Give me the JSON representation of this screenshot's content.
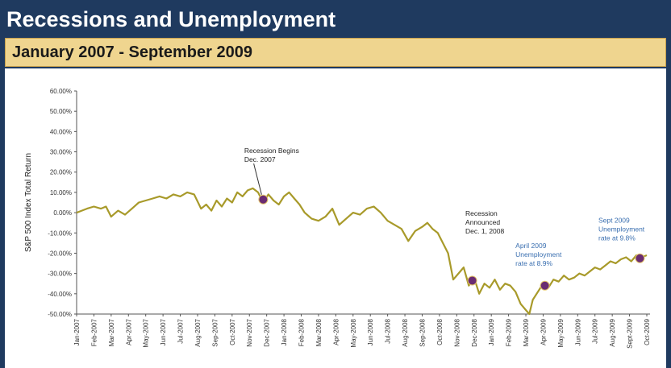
{
  "header": {
    "title": "Recessions and Unemployment",
    "subtitle": "January 2007 - September 2009"
  },
  "colors": {
    "header_bg": "#1f3a5f",
    "subtitle_bg": "#efd58f",
    "line": "#a89a2a",
    "marker": "#6a2c72",
    "ann_black": "#222222",
    "ann_blue": "#3a6fb0"
  },
  "chart_data": {
    "type": "line",
    "ylabel": "S&P 500 Index Total Return",
    "ylim": [
      -50,
      60
    ],
    "yticks": [
      60,
      50,
      40,
      30,
      20,
      10,
      0,
      -10,
      -20,
      -30,
      -40,
      -50
    ],
    "ytick_labels": [
      "60.00%",
      "50.00%",
      "40.00%",
      "30.00%",
      "20.00%",
      "10.00%",
      "0.00%",
      "-10.00%",
      "-20.00%",
      "-30.00%",
      "-40.00%",
      "-50.00%"
    ],
    "x_labels": [
      "Jan-2007",
      "Feb-2007",
      "Mar-2007",
      "Apr-2007",
      "May-2007",
      "Jun-2007",
      "Jul-2007",
      "Aug-2007",
      "Sep-2007",
      "Oct-2007",
      "Nov-2007",
      "Dec-2007",
      "Jan-2008",
      "Feb-2008",
      "Mar-2008",
      "Apr-2008",
      "May-2008",
      "Jun-2008",
      "Jul-2008",
      "Aug-2008",
      "Sep-2008",
      "Oct-2008",
      "Nov-2008",
      "Dec-2008",
      "Jan-2009",
      "Feb-2009",
      "Mar-2009",
      "Apr-2009",
      "May-2009",
      "Jun-2009",
      "Jul-2009",
      "Aug-2009",
      "Sept-2009",
      "Oct-2009"
    ],
    "series": [
      {
        "x": [
          0,
          0.3,
          0.6,
          1.0,
          1.4,
          1.7,
          2.0,
          2.4,
          2.8,
          3.2,
          3.6,
          4.0,
          4.4,
          4.8,
          5.2,
          5.6,
          6.0,
          6.4,
          6.8,
          7.2,
          7.5,
          7.8,
          8.1,
          8.4,
          8.7,
          9.0,
          9.3,
          9.6,
          9.9,
          10.2,
          10.5,
          10.8,
          11.1,
          11.4,
          11.7,
          12.0,
          12.3,
          12.6,
          12.9,
          13.2,
          13.6,
          14.0,
          14.4,
          14.8,
          15.2,
          15.6,
          16.0,
          16.4,
          16.8,
          17.2,
          17.6,
          18.0,
          18.4,
          18.8,
          19.2,
          19.6,
          20.0,
          20.3,
          20.6,
          20.9,
          21.2,
          21.5,
          21.8,
          22.1,
          22.4,
          22.7,
          23.0,
          23.3,
          23.6,
          23.9,
          24.2,
          24.5,
          24.8,
          25.1,
          25.4,
          25.7,
          26.0,
          26.2,
          26.4,
          26.7,
          27.0,
          27.3,
          27.6,
          27.9,
          28.2,
          28.5,
          28.8,
          29.1,
          29.4,
          29.7,
          30.0,
          30.3,
          30.6,
          30.9,
          31.2,
          31.5,
          31.8,
          32.1,
          32.4,
          32.7,
          33.0
        ],
        "y": [
          0,
          1,
          2,
          3,
          2,
          3,
          -2,
          1,
          -1,
          2,
          5,
          6,
          7,
          8,
          7,
          9,
          8,
          10,
          9,
          2,
          4,
          1,
          6,
          3,
          7,
          5,
          10,
          8,
          11,
          12,
          10,
          5,
          9,
          6,
          4,
          8,
          10,
          7,
          4,
          0,
          -3,
          -4,
          -2,
          2,
          -6,
          -3,
          0,
          -1,
          2,
          3,
          0,
          -4,
          -6,
          -8,
          -14,
          -9,
          -7,
          -5,
          -8,
          -10,
          -15,
          -20,
          -33,
          -30,
          -27,
          -36,
          -32,
          -40,
          -35,
          -37,
          -33,
          -38,
          -35,
          -36,
          -39,
          -45,
          -48,
          -50,
          -43,
          -39,
          -35,
          -37,
          -33,
          -34,
          -31,
          -33,
          -32,
          -30,
          -31,
          -29,
          -27,
          -28,
          -26,
          -24,
          -25,
          -23,
          -22,
          -24,
          -21,
          -22,
          -21
        ]
      }
    ],
    "markers": [
      {
        "x": 10.8,
        "y": 6.5
      },
      {
        "x": 22.9,
        "y": -33.5
      },
      {
        "x": 27.1,
        "y": -36
      },
      {
        "x": 32.6,
        "y": -22.5
      }
    ],
    "annotations": [
      {
        "lines": [
          "Recession Begins",
          "Dec. 2007"
        ],
        "color": "black",
        "lx": 9.7,
        "ly": 29.5
      },
      {
        "lines": [
          "Recession",
          "Announced",
          "Dec. 1, 2008"
        ],
        "color": "black",
        "lx": 22.5,
        "ly": -1.5
      },
      {
        "lines": [
          "April 2009",
          "Unemployment",
          "rate at 8.9%"
        ],
        "color": "blue",
        "lx": 25.4,
        "ly": -17.5
      },
      {
        "lines": [
          "Sept 2009",
          "Unemployment",
          "rate at 9.8%"
        ],
        "color": "blue",
        "lx": 30.2,
        "ly": -5
      }
    ],
    "grid": false,
    "legend": "none"
  }
}
